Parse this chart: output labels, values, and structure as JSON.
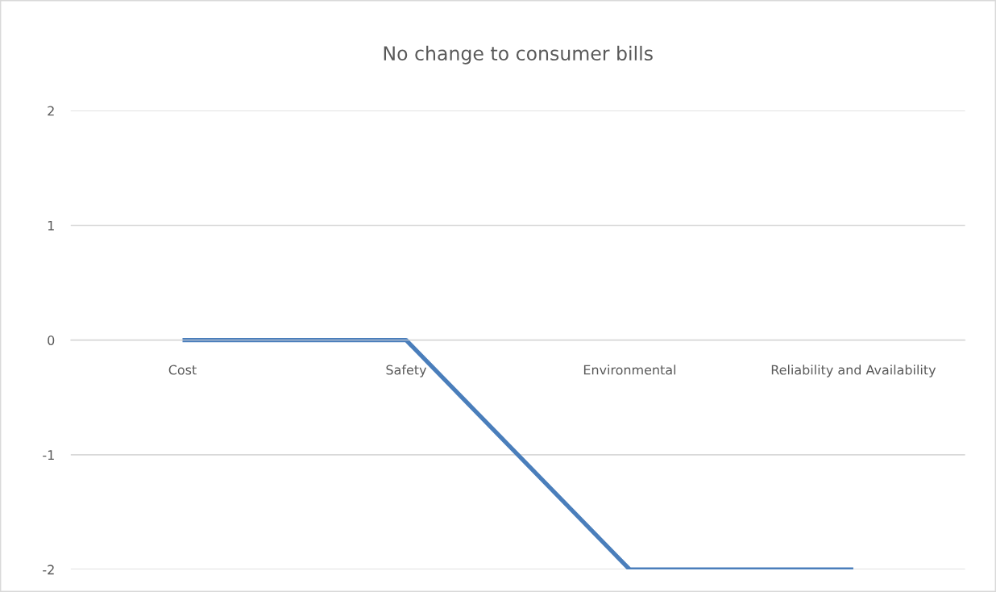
{
  "chart_data": {
    "type": "line",
    "title": "No change to consumer bills",
    "categories": [
      "Cost",
      "Safety",
      "Environmental",
      "Reliability and Availability"
    ],
    "series": [
      {
        "color": "#4a7ebb",
        "values": [
          0,
          0,
          -2,
          -2
        ]
      }
    ],
    "ylim": [
      -2,
      2
    ],
    "yticks": [
      -2,
      -1,
      0,
      1,
      2
    ],
    "grid": "y",
    "marker": "none",
    "line_style": "solid"
  }
}
